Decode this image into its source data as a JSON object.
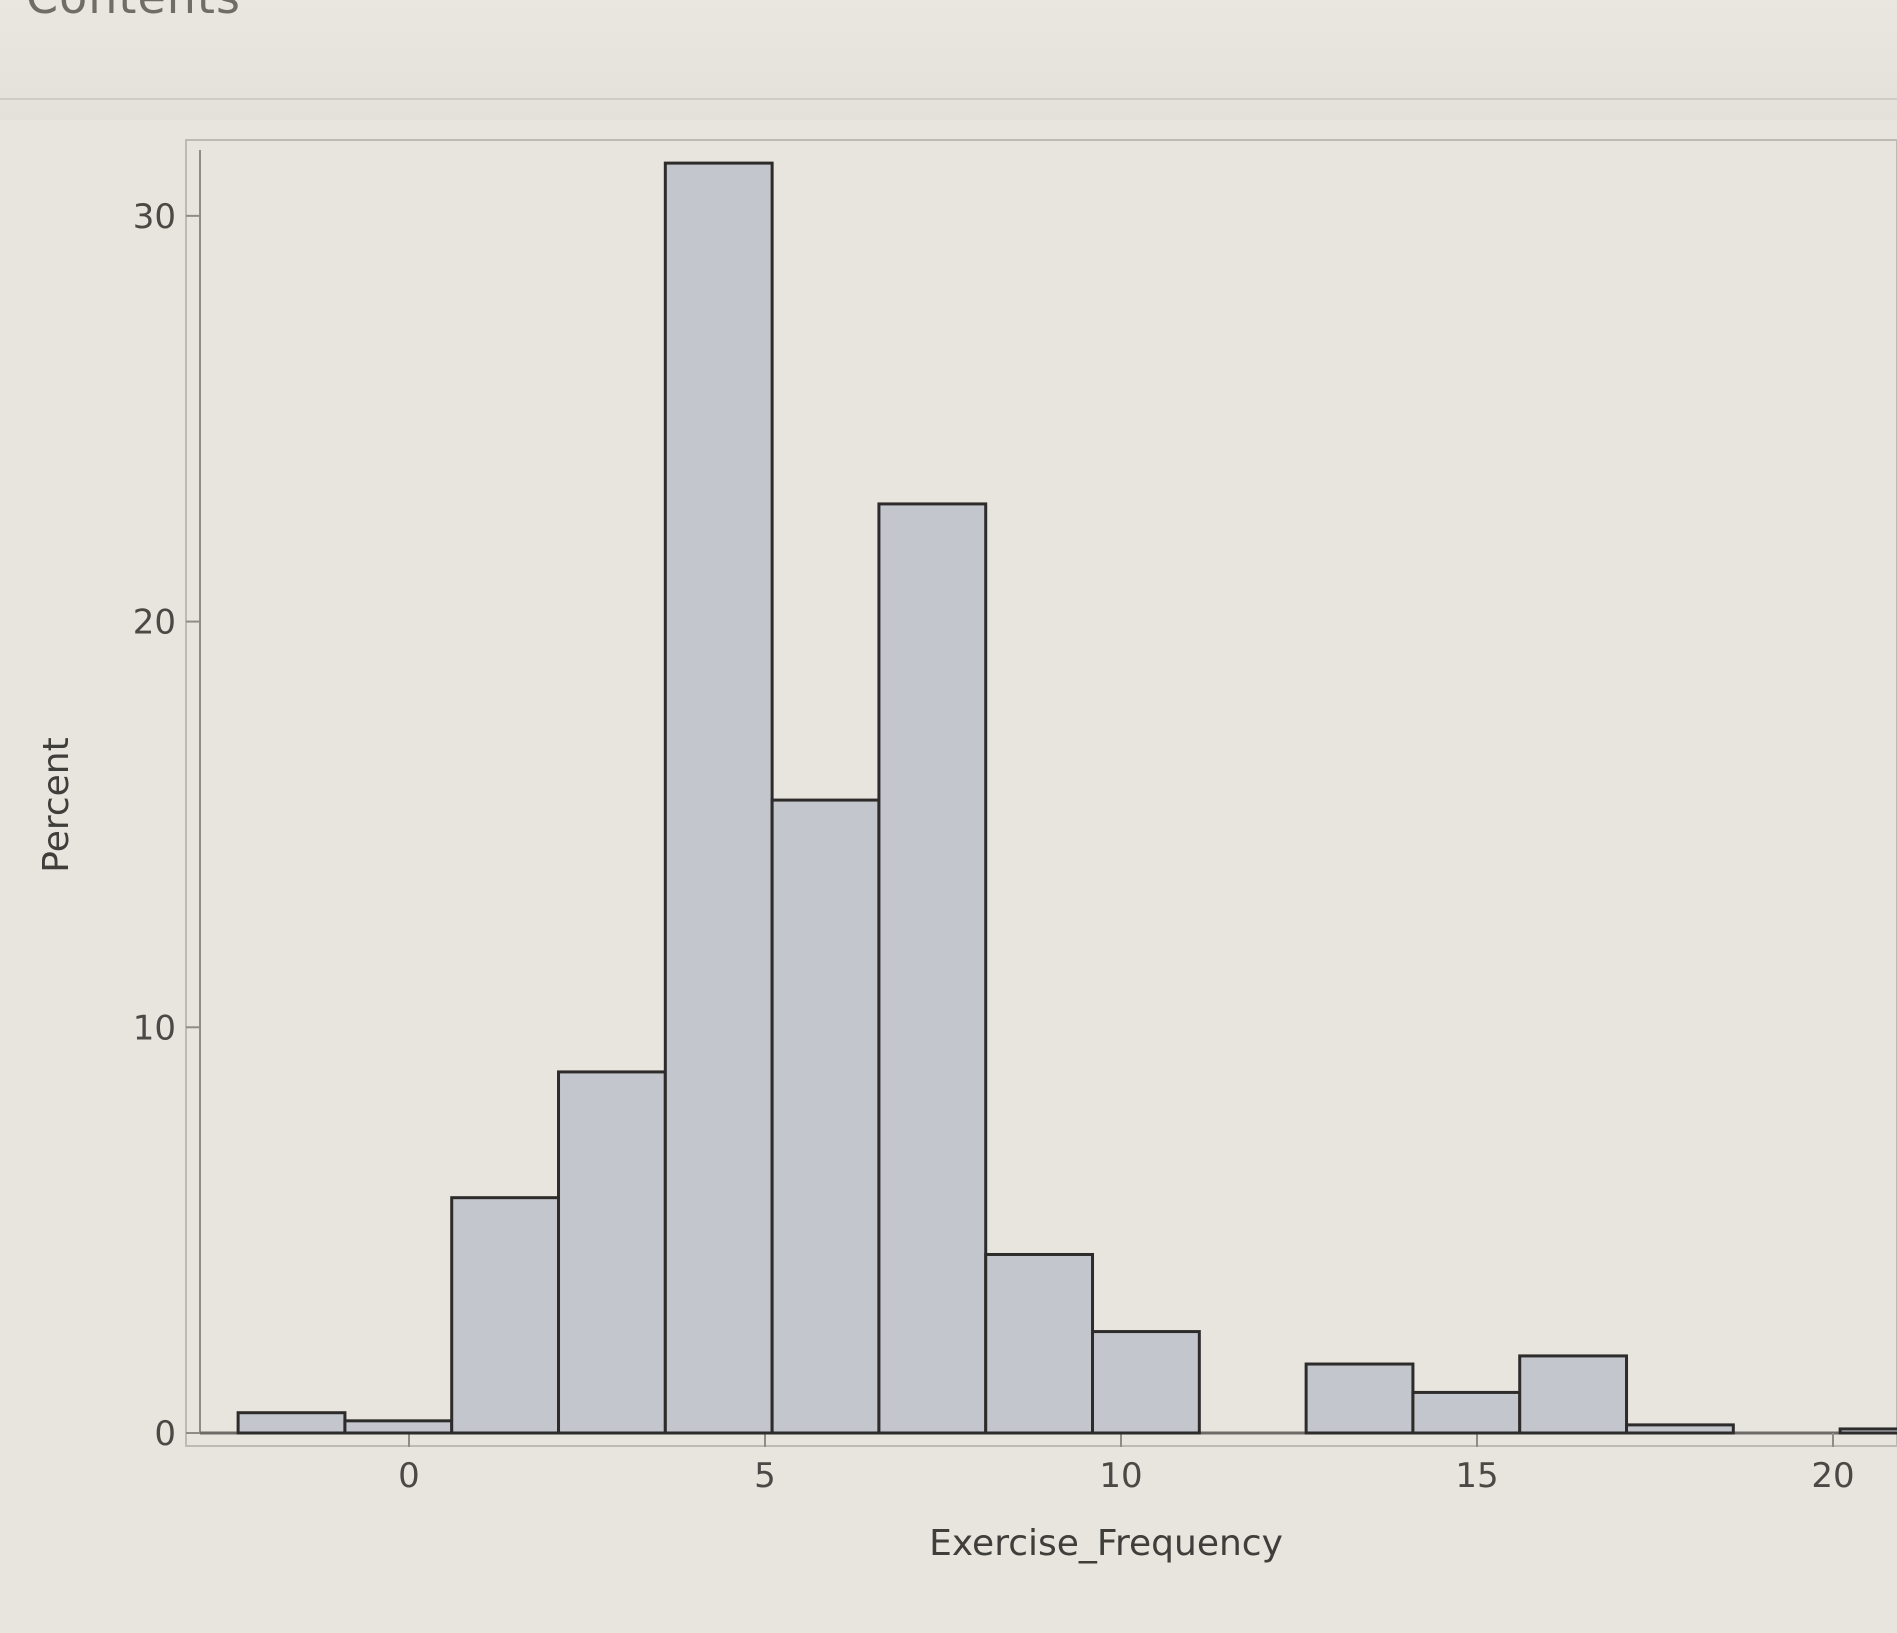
{
  "header": {
    "section_title": "Contents"
  },
  "chart_data": {
    "type": "bar",
    "title": "",
    "xlabel": "Exercise_Frequency",
    "ylabel": "Percent",
    "xlim": [
      -2.4,
      21.2
    ],
    "ylim": [
      0,
      31.5
    ],
    "x_ticks": [
      0,
      5,
      10,
      15,
      20
    ],
    "y_ticks": [
      0,
      10,
      20,
      30
    ],
    "bin_width": 1.5,
    "bins": [
      {
        "x0": -2.4,
        "x1": -0.9,
        "value": 0.5
      },
      {
        "x0": -0.9,
        "x1": 0.6,
        "value": 0.3
      },
      {
        "x0": 0.6,
        "x1": 2.1,
        "value": 5.8
      },
      {
        "x0": 2.1,
        "x1": 3.6,
        "value": 8.9
      },
      {
        "x0": 3.6,
        "x1": 5.1,
        "value": 31.3
      },
      {
        "x0": 5.1,
        "x1": 6.6,
        "value": 15.6
      },
      {
        "x0": 6.6,
        "x1": 8.1,
        "value": 22.9
      },
      {
        "x0": 8.1,
        "x1": 9.6,
        "value": 4.4
      },
      {
        "x0": 9.6,
        "x1": 11.1,
        "value": 2.5
      },
      {
        "x0": 12.6,
        "x1": 14.1,
        "value": 1.7
      },
      {
        "x0": 14.1,
        "x1": 15.6,
        "value": 1.0
      },
      {
        "x0": 15.6,
        "x1": 17.1,
        "value": 1.9
      },
      {
        "x0": 17.1,
        "x1": 18.6,
        "value": 0.2
      },
      {
        "x0": 20.1,
        "x1": 21.6,
        "value": 0.1
      }
    ],
    "grid": false,
    "legend": "none",
    "colors": {
      "bar_fill": "#c3c6cd",
      "bar_stroke": "#2e2b2b",
      "background": "#e7e5dd"
    }
  }
}
